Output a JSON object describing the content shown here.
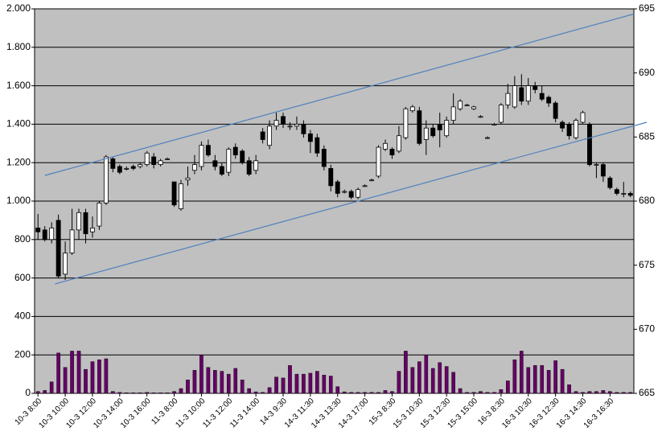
{
  "chart_data": {
    "type": "candlestick",
    "categories": [
      "10-3 8:00",
      null,
      null,
      null,
      "10-3 10:00",
      null,
      null,
      null,
      "10-3 12:00",
      null,
      null,
      null,
      "10-3 14:00",
      null,
      null,
      null,
      "10-3 16:00",
      null,
      null,
      null,
      "11-3 8:00",
      null,
      null,
      null,
      "11-3 10:00",
      null,
      null,
      null,
      "11-3 12:00",
      null,
      null,
      null,
      "11-3 14:00",
      null,
      null,
      null,
      "14-3 9:30",
      null,
      null,
      null,
      "14-3 11:30",
      null,
      null,
      null,
      "14-3 13:30",
      null,
      null,
      null,
      "14-3 17:00",
      null,
      null,
      null,
      "15-3 8:30",
      null,
      null,
      null,
      "15-3 10:30",
      null,
      null,
      null,
      "15-3 12:30",
      null,
      null,
      null,
      "15-3 15:00",
      null,
      null,
      null,
      "16-3 8:30",
      null,
      null,
      null,
      "16-3 10:30",
      null,
      null,
      null,
      "16-3 12:30",
      null,
      null,
      null,
      "16-3 14:30",
      null,
      null,
      null,
      "16-3 16:30",
      null,
      null,
      null
    ],
    "candles": {
      "axis": "y2",
      "up_color": "#ffffff",
      "down_color": "#000000",
      "open": [
        677.9,
        677.75,
        677.0,
        678.5,
        674.3,
        675.95,
        677.75,
        679.1,
        677.6,
        678.05,
        679.85,
        683.3,
        682.7,
        682.55,
        682.7,
        682.7,
        682.85,
        683.45,
        682.85,
        683.3,
        681.5,
        679.4,
        681.65,
        682.4,
        682.7,
        684.35,
        683.15,
        682.7,
        682.25,
        684.2,
        683.9,
        683.15,
        682.4,
        685.4,
        684.35,
        685.85,
        686.6,
        685.85,
        685.85,
        686.0,
        685.25,
        684.95,
        684.05,
        682.55,
        681.5,
        680.75,
        680.75,
        680.3,
        681.2,
        681.65,
        681.95,
        684.05,
        684.05,
        683.9,
        684.95,
        687.05,
        687.05,
        684.8,
        685.7,
        686.0,
        685.1,
        686.3,
        687.2,
        687.5,
        687.2,
        686.6,
        684.95,
        686.0,
        686.15,
        687.5,
        687.35,
        688.85,
        687.8,
        689.0,
        688.4,
        688.1,
        687.65,
        686.15,
        686.0,
        684.95,
        686.15,
        686.0,
        682.85,
        682.85,
        681.8,
        680.9,
        680.6,
        680.6
      ],
      "high": [
        679.0,
        678.05,
        678.35,
        678.95,
        676.85,
        679.4,
        679.4,
        679.4,
        678.8,
        680.0,
        683.6,
        683.45,
        682.85,
        682.7,
        682.85,
        683.0,
        683.9,
        683.75,
        683.3,
        683.4,
        681.5,
        681.65,
        682.7,
        683.6,
        684.65,
        684.8,
        683.6,
        683.0,
        684.2,
        684.5,
        684.05,
        683.45,
        683.6,
        685.7,
        686.3,
        686.9,
        686.9,
        686.15,
        686.6,
        686.3,
        685.55,
        685.25,
        684.35,
        682.85,
        681.65,
        680.9,
        680.9,
        681.05,
        681.3,
        681.75,
        684.35,
        684.8,
        684.2,
        685.85,
        687.35,
        687.5,
        687.35,
        686.3,
        686.0,
        686.9,
        686.6,
        688.4,
        687.95,
        687.6,
        687.45,
        686.7,
        685.05,
        686.1,
        687.65,
        689.15,
        689.75,
        689.9,
        689.6,
        689.3,
        689.0,
        688.25,
        687.8,
        686.3,
        686.15,
        686.45,
        687.05,
        686.15,
        683.0,
        683.0,
        681.95,
        681.05,
        681.5,
        680.75
      ],
      "low": [
        677.0,
        676.85,
        676.7,
        674.0,
        673.85,
        675.8,
        677.0,
        676.7,
        677.15,
        677.75,
        679.7,
        682.25,
        682.1,
        682.4,
        682.4,
        682.55,
        682.7,
        682.55,
        682.7,
        683.2,
        679.55,
        679.25,
        681.2,
        682.1,
        682.4,
        683.45,
        682.4,
        681.95,
        681.95,
        683.3,
        682.85,
        681.95,
        682.1,
        684.5,
        684.05,
        685.55,
        685.7,
        685.55,
        685.55,
        684.95,
        683.75,
        683.45,
        682.4,
        680.75,
        680.3,
        680.6,
        680.15,
        680.15,
        681.1,
        681.55,
        681.8,
        683.9,
        683.3,
        683.75,
        684.8,
        686.9,
        684.35,
        683.6,
        684.95,
        684.2,
        684.95,
        686.0,
        687.05,
        687.4,
        687.1,
        686.5,
        684.85,
        685.9,
        686.0,
        687.2,
        687.2,
        687.5,
        687.5,
        688.4,
        687.8,
        687.35,
        686.15,
        685.4,
        684.8,
        684.8,
        686.0,
        682.7,
        681.8,
        681.5,
        680.9,
        680.45,
        680.3,
        680.3
      ],
      "close": [
        677.6,
        677.0,
        677.9,
        674.15,
        675.95,
        677.75,
        679.1,
        677.45,
        677.9,
        679.85,
        683.45,
        682.55,
        682.25,
        682.55,
        682.55,
        682.85,
        683.75,
        682.85,
        683.15,
        683.3,
        679.7,
        681.35,
        681.8,
        682.85,
        684.35,
        683.6,
        682.7,
        682.1,
        684.05,
        683.6,
        683.0,
        682.1,
        683.15,
        684.8,
        685.85,
        686.3,
        686.0,
        685.85,
        686.0,
        685.25,
        684.65,
        683.75,
        682.7,
        681.2,
        680.6,
        680.75,
        680.3,
        680.9,
        681.2,
        681.65,
        684.2,
        684.5,
        683.6,
        685.1,
        687.2,
        687.35,
        684.5,
        685.7,
        685.1,
        685.55,
        686.3,
        687.35,
        687.8,
        687.5,
        687.35,
        686.6,
        684.95,
        686.0,
        687.5,
        688.4,
        689.0,
        687.8,
        689.0,
        688.7,
        687.95,
        687.65,
        686.45,
        685.7,
        685.1,
        686.3,
        686.9,
        682.85,
        682.85,
        681.95,
        681.05,
        680.6,
        680.6,
        680.45
      ]
    },
    "volume": {
      "color": "#660066",
      "values": [
        10,
        15,
        60,
        210,
        135,
        220,
        220,
        125,
        165,
        175,
        180,
        10,
        5,
        3,
        3,
        3,
        5,
        3,
        3,
        3,
        10,
        25,
        70,
        120,
        200,
        135,
        120,
        115,
        100,
        130,
        70,
        25,
        8,
        5,
        30,
        85,
        80,
        145,
        100,
        100,
        105,
        115,
        95,
        90,
        35,
        8,
        5,
        5,
        5,
        5,
        5,
        15,
        10,
        115,
        220,
        135,
        165,
        200,
        130,
        160,
        140,
        110,
        25,
        5,
        5,
        10,
        5,
        5,
        20,
        65,
        175,
        220,
        135,
        145,
        145,
        120,
        170,
        125,
        45,
        10,
        5,
        10,
        10,
        15,
        10,
        5,
        5,
        5
      ]
    },
    "trendlines": [
      {
        "color": "#4f81bd",
        "x": [
          1,
          87.5
        ],
        "y": [
          682.0,
          694.6
        ]
      },
      {
        "color": "#4f81bd",
        "x": [
          2.5,
          89.4
        ],
        "y": [
          673.54,
          686.15
        ]
      }
    ],
    "ylim": [
      0,
      2000
    ],
    "yticks": [
      0,
      200,
      400,
      600,
      800,
      {
        "value": 1000,
        "label": "1.000"
      },
      {
        "value": 1200,
        "label": "1.200"
      },
      {
        "value": 1400,
        "label": "1.400"
      },
      {
        "value": 1600,
        "label": "1.600"
      },
      {
        "value": 1800,
        "label": "1.800"
      },
      {
        "value": 2000,
        "label": "2.000"
      }
    ],
    "y2lim": [
      665,
      695
    ],
    "y2ticks": [
      665,
      670,
      675,
      680,
      685,
      690,
      695
    ],
    "grid": true,
    "plot_background": "#c0c0c0"
  }
}
